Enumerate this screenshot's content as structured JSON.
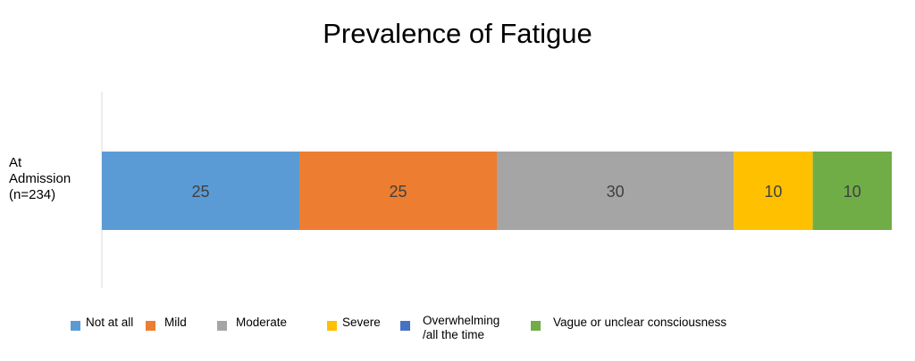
{
  "chart_data": {
    "type": "bar",
    "orientation": "horizontal",
    "stacked": true,
    "title": "Prevalence of Fatigue",
    "categories": [
      "At Admission (n=234)"
    ],
    "category_label_lines": [
      "At",
      "Admission",
      "(n=234)"
    ],
    "series": [
      {
        "name": "Not at all",
        "values": [
          25
        ],
        "color": "#5B9BD5"
      },
      {
        "name": "Mild",
        "values": [
          25
        ],
        "color": "#ED7D31"
      },
      {
        "name": "Moderate",
        "values": [
          30
        ],
        "color": "#A5A5A5"
      },
      {
        "name": "Severe",
        "values": [
          10
        ],
        "color": "#FFC000"
      },
      {
        "name": "Overwhelming\n/all the time",
        "values": [
          0
        ],
        "color": "#4472C4"
      },
      {
        "name": "Vague or unclear consciousness",
        "values": [
          10
        ],
        "color": "#70AD47"
      }
    ],
    "xlim": [
      0,
      100
    ],
    "grid": false,
    "legend_position": "bottom"
  }
}
